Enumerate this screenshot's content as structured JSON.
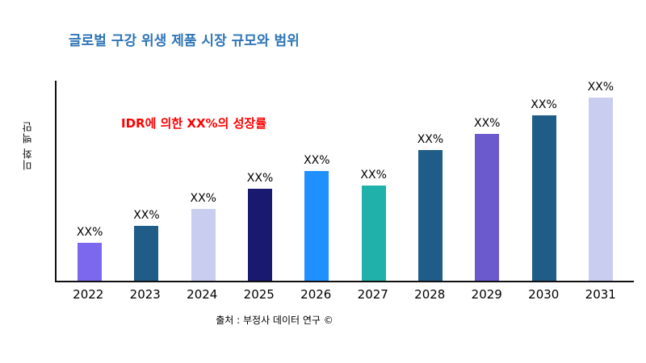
{
  "title": "글로벌 구강 위생 제품 시장 규모와 범위",
  "y_axis_title": "미화 백만",
  "annotation": "IDR에 의한 XX%의 성장률",
  "source": "출처 : 부정사 데이터 연구 ©",
  "accent_colors": {
    "title": "#2E75B6",
    "annotation": "#FF0000",
    "axis": "#111111"
  },
  "chart_data": {
    "type": "bar",
    "title": "글로벌 구강 위생 제품 시장 규모와 범위",
    "xlabel": "",
    "ylabel": "미화 백만",
    "categories": [
      "2022",
      "2023",
      "2024",
      "2025",
      "2026",
      "2027",
      "2028",
      "2029",
      "2030",
      "2031"
    ],
    "values": [
      20.5,
      30,
      39,
      50,
      60,
      52,
      71,
      80,
      90,
      100
    ],
    "ylim": [
      0,
      109
    ],
    "data_labels": [
      "XX%",
      "XX%",
      "XX%",
      "XX%",
      "XX%",
      "XX%",
      "XX%",
      "XX%",
      "XX%",
      "XX%"
    ],
    "colors": [
      "#7B68EE",
      "#1F5C87",
      "#C9CDF0",
      "#191970",
      "#1E90FF",
      "#20B2AA",
      "#1F5C87",
      "#6A5ACD",
      "#1F5C87",
      "#C9CDF0"
    ],
    "grid": false,
    "legend": "none",
    "annotations": [
      "IDR에 의한 XX%의 성장률"
    ]
  }
}
